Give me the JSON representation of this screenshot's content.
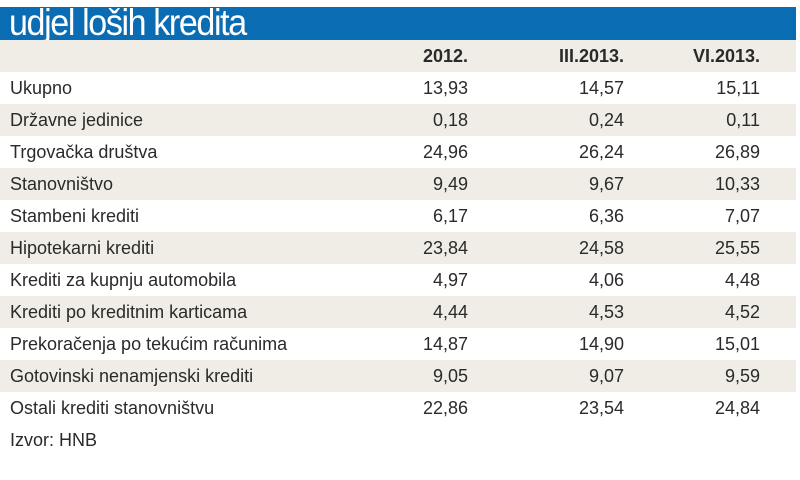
{
  "title": "udjel loših kredita",
  "colors": {
    "title_bar": "#0a6db3",
    "alt_row": "#efede5"
  },
  "chart_data": {
    "type": "table",
    "title": "udjel loših kredita",
    "columns": [
      "2012.",
      "III.2013.",
      "VI.2013."
    ],
    "rows": [
      {
        "label": "Ukupno",
        "values": [
          "13,93",
          "14,57",
          "15,11"
        ]
      },
      {
        "label": "Državne jedinice",
        "values": [
          "0,18",
          "0,24",
          "0,11"
        ]
      },
      {
        "label": "Trgovačka društva",
        "values": [
          "24,96",
          "26,24",
          "26,89"
        ]
      },
      {
        "label": "Stanovništvo",
        "values": [
          "9,49",
          "9,67",
          "10,33"
        ]
      },
      {
        "label": "Stambeni krediti",
        "values": [
          "6,17",
          "6,36",
          "7,07"
        ]
      },
      {
        "label": "Hipotekarni krediti",
        "values": [
          "23,84",
          "24,58",
          "25,55"
        ]
      },
      {
        "label": "Krediti za kupnju automobila",
        "values": [
          "4,97",
          "4,06",
          "4,48"
        ]
      },
      {
        "label": "Krediti po kreditnim karticama",
        "values": [
          "4,44",
          "4,53",
          "4,52"
        ]
      },
      {
        "label": "Prekoračenja po tekućim računima",
        "values": [
          "14,87",
          "14,90",
          "15,01"
        ]
      },
      {
        "label": "Gotovinski nenamjenski krediti",
        "values": [
          "9,05",
          "9,07",
          "9,59"
        ]
      },
      {
        "label": "Ostali krediti stanovništvu",
        "values": [
          "22,86",
          "23,54",
          "24,84"
        ]
      }
    ],
    "source": "Izvor: HNB"
  }
}
